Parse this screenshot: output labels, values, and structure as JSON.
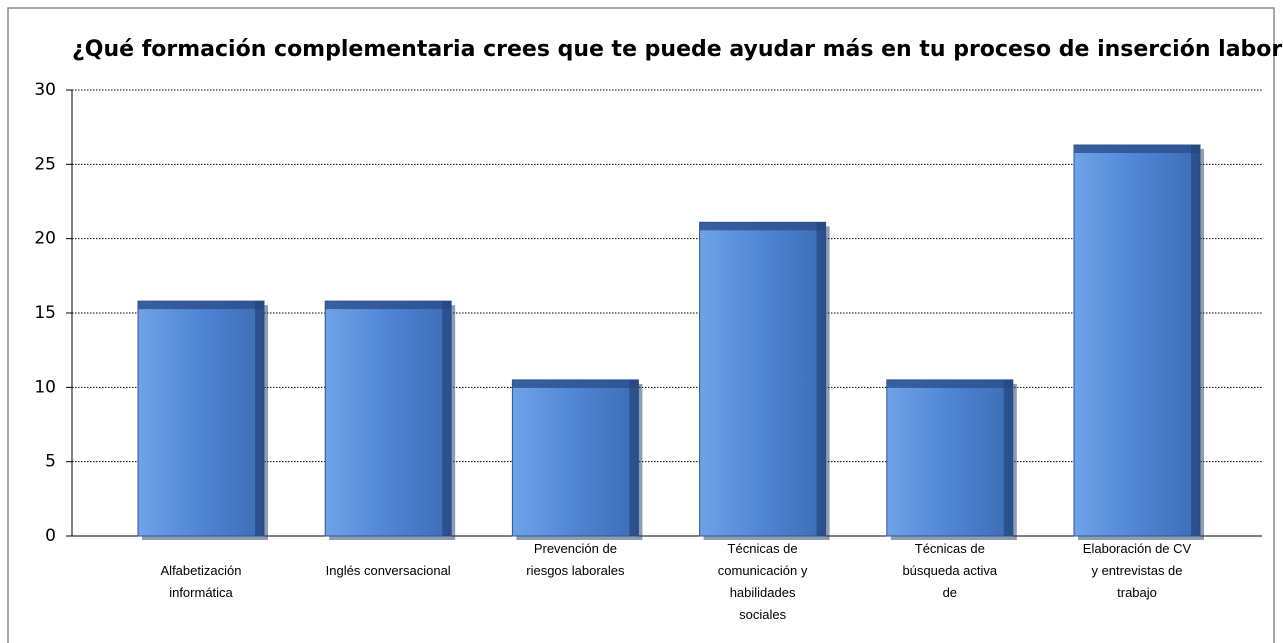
{
  "chart_data": {
    "type": "bar",
    "title": "¿Qué formación complementaria crees que te puede ayudar más en tu proceso de inserción laboral?",
    "categories": [
      "Alfabetización informática",
      "Inglés conversacional",
      "Prevención de riesgos laborales",
      "Técnicas de comunicación y habilidades sociales",
      "Técnicas de búsqueda activa de",
      "Elaboración de CV y entrevistas de trabajo"
    ],
    "values": [
      15.8,
      15.8,
      10.5,
      21.1,
      10.5,
      26.3
    ],
    "color": "#4f81cf",
    "ylim": [
      0,
      30
    ],
    "yticks": [
      0,
      5,
      10,
      15,
      20,
      25,
      30
    ],
    "grid": true
  }
}
